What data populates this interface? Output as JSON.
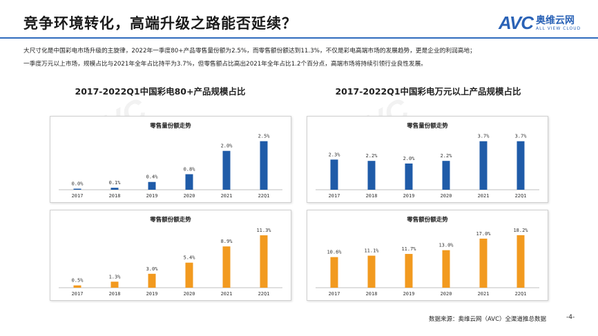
{
  "header": {
    "title": "竞争环境转化，高端升级之路能否延续？"
  },
  "logo": {
    "mark": "AVC",
    "name_cn": "奥维云网",
    "name_en": "ALL VIEW CLOUD"
  },
  "watermark": {
    "text": "AVC"
  },
  "description": {
    "line1": "大尺寸化是中国彩电市场升级的主旋律，2022年一季度80+产品零售量份额为2.5%，而零售额份额达到11.3%，不仅是彩电高端市场的发展趋势，更是企业的利润高地；",
    "line2": "一季度万元以上市场，规模占比与2021年全年占比持平为3.7%，但零售额占比高出2021年全年占比1.2个百分点，高端市场将持续引领行业良性发展。"
  },
  "left_title": "2017-2022Q1中国彩电80+产品规模占比",
  "right_title": "2017-2022Q1中国彩电万元以上产品规模占比",
  "colors": {
    "blue": "#1f5ba8",
    "orange": "#f29a1f",
    "rule": "#2f6bbd"
  },
  "chart_data": [
    {
      "type": "bar",
      "title": "零售量份额走势",
      "categories": [
        "2017",
        "2018",
        "2019",
        "2020",
        "2021",
        "22Q1"
      ],
      "values": [
        0.0,
        0.1,
        0.4,
        0.8,
        2.0,
        2.5
      ],
      "labels": [
        "0.0%",
        "0.1%",
        "0.4%",
        "0.8%",
        "2.0%",
        "2.5%"
      ],
      "ylim": [
        0,
        2.7
      ]
    },
    {
      "type": "bar",
      "title": "零售额份额走势",
      "categories": [
        "2017",
        "2018",
        "2019",
        "2020",
        "2021",
        "22Q1"
      ],
      "values": [
        0.5,
        1.3,
        3.0,
        5.4,
        8.9,
        11.3
      ],
      "labels": [
        "0.5%",
        "1.3%",
        "3.0%",
        "5.4%",
        "8.9%",
        "11.3%"
      ],
      "ylim": [
        0,
        12.2
      ]
    },
    {
      "type": "bar",
      "title": "零售量份额走势",
      "categories": [
        "2017",
        "2018",
        "2019",
        "2020",
        "2021",
        "22Q1"
      ],
      "values": [
        2.3,
        2.2,
        2.0,
        2.2,
        3.7,
        3.7
      ],
      "labels": [
        "2.3%",
        "2.2%",
        "2.0%",
        "2.2%",
        "3.7%",
        "3.7%"
      ],
      "ylim": [
        0,
        4.0
      ]
    },
    {
      "type": "bar",
      "title": "零售额份额走势",
      "categories": [
        "2017",
        "2018",
        "2019",
        "2020",
        "2021",
        "22Q1"
      ],
      "values": [
        10.6,
        11.1,
        11.7,
        13.0,
        17.0,
        18.2
      ],
      "labels": [
        "10.6%",
        "11.1%",
        "11.7%",
        "13.0%",
        "17.0%",
        "18.2%"
      ],
      "ylim": [
        0,
        19.6
      ]
    }
  ],
  "footer": {
    "source": "数据来源：奥维云网（AVC）全渠道推总数据",
    "page": "-4-"
  }
}
